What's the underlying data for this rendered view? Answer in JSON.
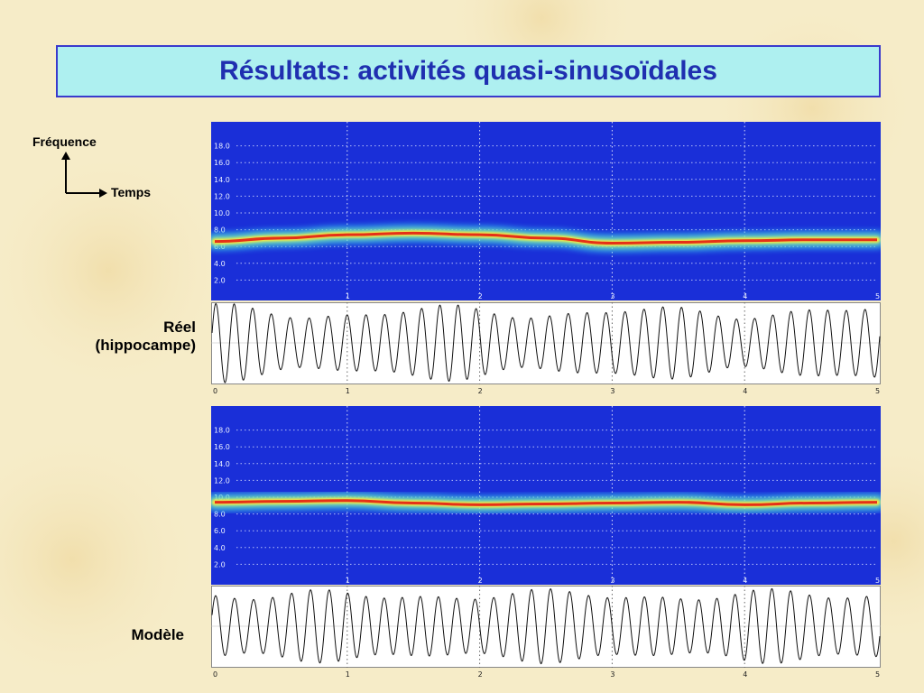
{
  "title": "Résultats: activités quasi-sinusoïdales",
  "axis_key": {
    "vertical": "Fréquence",
    "horizontal": "Temps"
  },
  "labels": {
    "real_line1": "Réel",
    "real_line2": "(hippocampe)",
    "model": "Modèle"
  },
  "colors": {
    "background": "#f6ecc8",
    "title_fill": "#aef0f0",
    "title_border": "#3a3acc",
    "title_text": "#1f2fb0",
    "spectrogram_bg": "#1a2fd8",
    "ridge_hot": "#e01010"
  },
  "spectrogram_freq_ticks": [
    "18.0",
    "16.0",
    "14.0",
    "12.0",
    "10.0",
    "8.0",
    "6.0",
    "4.0",
    "2.0"
  ],
  "time_ticks": [
    "0",
    "1",
    "2",
    "3",
    "4",
    "5"
  ],
  "spectrograms": [
    {
      "name": "real",
      "ridge_frequency_hz": [
        6.6,
        7.0,
        7.4,
        7.6,
        7.4,
        7.0,
        6.4,
        6.5,
        6.7,
        6.8,
        6.8
      ]
    },
    {
      "name": "model",
      "ridge_frequency_hz": [
        9.4,
        9.5,
        9.6,
        9.3,
        9.1,
        9.2,
        9.3,
        9.4,
        9.1,
        9.3,
        9.4
      ]
    }
  ],
  "oscillation_cycles": 36
}
